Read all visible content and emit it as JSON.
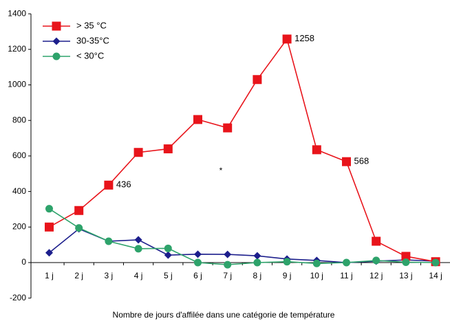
{
  "chart_data": {
    "type": "line",
    "title": "",
    "xlabel": "Nombre de jours d'affilée dans une catégorie de température",
    "ylabel": "",
    "ylim": [
      -200,
      1400
    ],
    "yticks": [
      "-200",
      "0",
      "200",
      "400",
      "600",
      "800",
      "1000",
      "1200",
      "1400"
    ],
    "categories": [
      "1 j",
      "2 j",
      "3 j",
      "4 j",
      "5 j",
      "6 j",
      "7 j",
      "8 j",
      "9 j",
      "10 j",
      "11 j",
      "12 j",
      "13 j",
      "14 j"
    ],
    "legend_position": "top-left",
    "grid": false,
    "series": [
      {
        "name": "> 35 °C",
        "color": "#e8141b",
        "marker": "square",
        "values": [
          200,
          293,
          436,
          620,
          640,
          805,
          758,
          1030,
          1258,
          635,
          568,
          120,
          35,
          5
        ]
      },
      {
        "name": "30-35°C",
        "color": "#1c1e8c",
        "marker": "diamond",
        "values": [
          55,
          190,
          120,
          128,
          42,
          47,
          46,
          38,
          20,
          12,
          0,
          8,
          15,
          8
        ]
      },
      {
        "name": "< 30°C",
        "color": "#2ea36b",
        "marker": "circle",
        "values": [
          303,
          195,
          120,
          78,
          80,
          0,
          -12,
          0,
          5,
          -5,
          0,
          12,
          2,
          0
        ]
      }
    ],
    "annotations": [
      {
        "text": "436",
        "series": 0,
        "index": 2
      },
      {
        "text": "1258",
        "series": 0,
        "index": 8
      },
      {
        "text": "568",
        "series": 0,
        "index": 10
      }
    ],
    "note": "*"
  }
}
